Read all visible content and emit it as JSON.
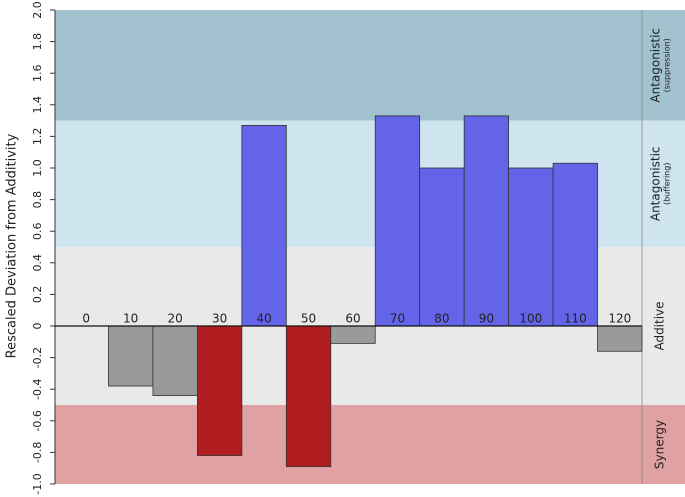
{
  "chart_data": {
    "type": "bar",
    "y_label": "Rescaled Deviation from Additivity",
    "categories": [
      0,
      10,
      20,
      30,
      40,
      50,
      60,
      70,
      80,
      90,
      100,
      110,
      120
    ],
    "values": [
      0,
      -0.38,
      -0.44,
      -0.82,
      1.27,
      -0.89,
      -0.11,
      1.33,
      1.0,
      1.33,
      1.0,
      1.03,
      -0.16
    ],
    "colors": [
      "#9a9a9a",
      "#9a9a9a",
      "#9a9a9a",
      "#b01e22",
      "#6464e8",
      "#b01e22",
      "#9a9a9a",
      "#6464e8",
      "#6464e8",
      "#6464e8",
      "#6464e8",
      "#6464e8",
      "#9a9a9a"
    ],
    "ylim": [
      -1.0,
      2.0
    ],
    "yticks": [
      {
        "value": -1.0,
        "label": "-1.0"
      },
      -0.8,
      -0.6,
      -0.4,
      -0.2,
      0,
      0.2,
      0.4,
      0.6,
      0.8,
      {
        "value": 1.0,
        "label": "1.0"
      },
      1.2,
      1.4,
      1.6,
      1.8,
      {
        "value": 2.0,
        "label": "2.0"
      }
    ],
    "regions": [
      {
        "label": "Antagonistic",
        "sublabel": "(suppression)",
        "from": 1.3,
        "to": 2.0,
        "color": "#a2c2cf"
      },
      {
        "label": "Antagonistic",
        "sublabel": "(buffering)",
        "from": 0.5,
        "to": 1.3,
        "color": "#cee5ef"
      },
      {
        "label": "Additive",
        "from": -0.5,
        "to": 0.5,
        "color": "#e9e9ea"
      },
      {
        "label": "Synergy",
        "from": -1.0,
        "to": -0.5,
        "color": "#dfa1a2"
      }
    ]
  }
}
